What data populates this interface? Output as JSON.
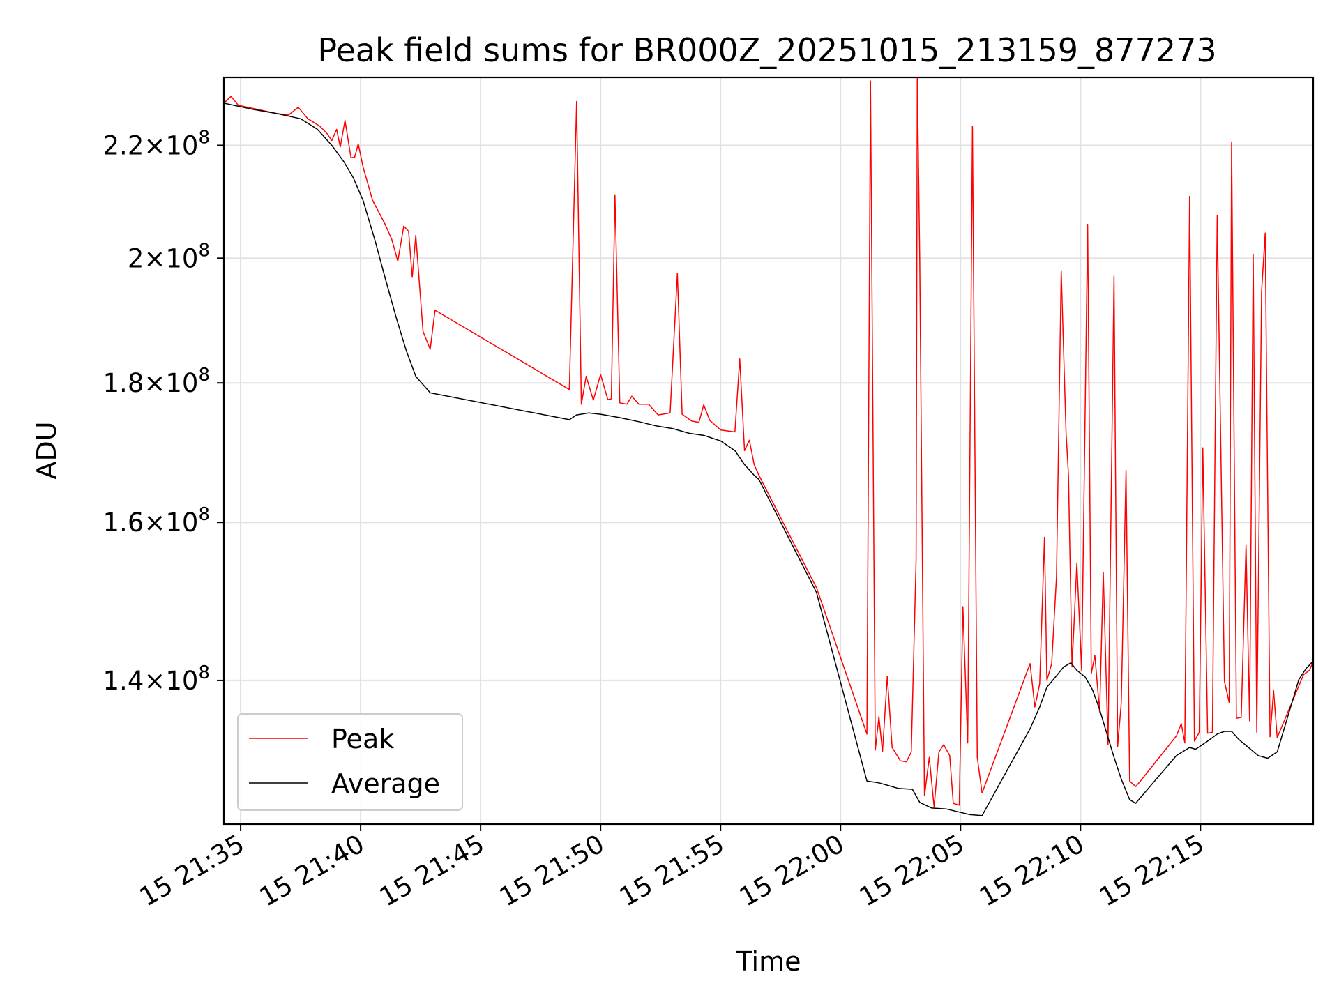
{
  "chart_data": {
    "type": "line",
    "title": "Peak field sums for BR000Z_20251015_213159_877273",
    "xlabel": "Time",
    "ylabel": "ADU",
    "yscale": "log",
    "x_unit": "minutes since 15 21:30",
    "xlim": [
      4.3,
      49.7
    ],
    "ylim": [
      124000000,
      233000000
    ],
    "grid": true,
    "legend_position": "lower-left",
    "x_ticks": [
      {
        "value": 5,
        "label": "15 21:35"
      },
      {
        "value": 10,
        "label": "15 21:40"
      },
      {
        "value": 15,
        "label": "15 21:45"
      },
      {
        "value": 20,
        "label": "15 21:50"
      },
      {
        "value": 25,
        "label": "15 21:55"
      },
      {
        "value": 30,
        "label": "15 22:00"
      },
      {
        "value": 35,
        "label": "15 22:05"
      },
      {
        "value": 40,
        "label": "15 22:10"
      },
      {
        "value": 45,
        "label": "15 22:15"
      }
    ],
    "y_ticks": [
      {
        "value": 140000000,
        "mantissa": "1.4",
        "exp": "8"
      },
      {
        "value": 160000000,
        "mantissa": "1.6",
        "exp": "8"
      },
      {
        "value": 180000000,
        "mantissa": "1.8",
        "exp": "8"
      },
      {
        "value": 200000000,
        "mantissa": "2",
        "exp": "8"
      },
      {
        "value": 220000000,
        "mantissa": "2.2",
        "exp": "8"
      }
    ],
    "series": [
      {
        "name": "Peak",
        "color": "#ff0000",
        "points": [
          [
            4.3,
            228000000
          ],
          [
            4.6,
            229300000
          ],
          [
            4.9,
            227600000
          ],
          [
            5.5,
            227000000
          ],
          [
            6.5,
            226000000
          ],
          [
            7.0,
            225700000
          ],
          [
            7.4,
            227200000
          ],
          [
            7.8,
            225000000
          ],
          [
            8.3,
            223600000
          ],
          [
            8.6,
            222200000
          ],
          [
            8.8,
            220900000
          ],
          [
            9.0,
            223000000
          ],
          [
            9.15,
            219700000
          ],
          [
            9.35,
            224700000
          ],
          [
            9.6,
            217700000
          ],
          [
            9.75,
            217800000
          ],
          [
            9.9,
            220300000
          ],
          [
            10.1,
            216000000
          ],
          [
            10.5,
            210000000
          ],
          [
            11.0,
            206000000
          ],
          [
            11.3,
            203200000
          ],
          [
            11.55,
            199500000
          ],
          [
            11.8,
            205500000
          ],
          [
            12.0,
            204600000
          ],
          [
            12.15,
            196800000
          ],
          [
            12.3,
            203900000
          ],
          [
            12.6,
            188000000
          ],
          [
            12.9,
            185200000
          ],
          [
            13.1,
            191400000
          ],
          [
            18.7,
            179000000
          ],
          [
            19.0,
            228300000
          ],
          [
            19.2,
            176800000
          ],
          [
            19.4,
            181000000
          ],
          [
            19.7,
            177400000
          ],
          [
            20.0,
            181300000
          ],
          [
            20.3,
            177500000
          ],
          [
            20.45,
            177600000
          ],
          [
            20.6,
            211000000
          ],
          [
            20.8,
            177000000
          ],
          [
            21.1,
            176800000
          ],
          [
            21.3,
            178000000
          ],
          [
            21.6,
            176800000
          ],
          [
            22.0,
            176800000
          ],
          [
            22.4,
            175200000
          ],
          [
            22.9,
            175500000
          ],
          [
            23.2,
            197500000
          ],
          [
            23.4,
            175300000
          ],
          [
            23.8,
            174300000
          ],
          [
            24.1,
            174100000
          ],
          [
            24.3,
            176700000
          ],
          [
            24.55,
            174400000
          ],
          [
            25.0,
            173000000
          ],
          [
            25.6,
            172700000
          ],
          [
            25.8,
            183700000
          ],
          [
            26.0,
            170000000
          ],
          [
            26.2,
            171500000
          ],
          [
            26.4,
            168000000
          ],
          [
            26.6,
            166500000
          ],
          [
            29.0,
            151400000
          ],
          [
            31.1,
            133800000
          ],
          [
            31.25,
            232300000
          ],
          [
            31.45,
            132000000
          ],
          [
            31.6,
            135800000
          ],
          [
            31.75,
            131800000
          ],
          [
            31.95,
            140500000
          ],
          [
            32.15,
            132300000
          ],
          [
            32.5,
            130800000
          ],
          [
            32.75,
            130700000
          ],
          [
            32.95,
            131800000
          ],
          [
            33.15,
            155000000
          ],
          [
            33.2,
            233000000
          ],
          [
            33.3,
            200000000
          ],
          [
            33.5,
            127000000
          ],
          [
            33.7,
            131200000
          ],
          [
            33.9,
            125800000
          ],
          [
            34.1,
            131800000
          ],
          [
            34.3,
            132600000
          ],
          [
            34.55,
            131400000
          ],
          [
            34.7,
            126200000
          ],
          [
            34.95,
            126000000
          ],
          [
            35.1,
            149000000
          ],
          [
            35.3,
            132800000
          ],
          [
            35.5,
            223600000
          ],
          [
            35.7,
            131200000
          ],
          [
            35.9,
            127300000
          ],
          [
            37.9,
            142000000
          ],
          [
            38.1,
            136900000
          ],
          [
            38.3,
            139600000
          ],
          [
            38.5,
            158000000
          ],
          [
            38.6,
            140000000
          ],
          [
            38.8,
            142000000
          ],
          [
            39.0,
            152800000
          ],
          [
            39.2,
            197900000
          ],
          [
            39.4,
            172600000
          ],
          [
            39.5,
            166500000
          ],
          [
            39.65,
            141600000
          ],
          [
            39.85,
            154600000
          ],
          [
            40.05,
            141200000
          ],
          [
            40.3,
            205800000
          ],
          [
            40.45,
            140800000
          ],
          [
            40.6,
            143000000
          ],
          [
            40.8,
            136300000
          ],
          [
            40.95,
            153400000
          ],
          [
            41.15,
            132600000
          ],
          [
            41.4,
            197000000
          ],
          [
            41.55,
            132400000
          ],
          [
            41.7,
            137400000
          ],
          [
            41.9,
            167200000
          ],
          [
            42.05,
            128600000
          ],
          [
            42.3,
            128000000
          ],
          [
            42.5,
            128600000
          ],
          [
            44.0,
            133600000
          ],
          [
            44.2,
            135000000
          ],
          [
            44.35,
            132800000
          ],
          [
            44.55,
            210700000
          ],
          [
            44.75,
            133000000
          ],
          [
            44.95,
            134000000
          ],
          [
            45.1,
            170400000
          ],
          [
            45.3,
            133900000
          ],
          [
            45.5,
            134000000
          ],
          [
            45.7,
            207400000
          ],
          [
            46.0,
            139900000
          ],
          [
            46.2,
            137400000
          ],
          [
            46.3,
            220600000
          ],
          [
            46.5,
            135600000
          ],
          [
            46.7,
            135700000
          ],
          [
            46.9,
            157000000
          ],
          [
            47.05,
            135300000
          ],
          [
            47.2,
            200600000
          ],
          [
            47.35,
            134000000
          ],
          [
            47.55,
            194500000
          ],
          [
            47.7,
            204300000
          ],
          [
            47.9,
            133500000
          ],
          [
            48.05,
            138800000
          ],
          [
            48.2,
            133400000
          ],
          [
            49.3,
            140700000
          ],
          [
            49.55,
            141200000
          ],
          [
            49.7,
            142300000
          ]
        ]
      },
      {
        "name": "Average",
        "color": "#000000",
        "points": [
          [
            4.3,
            228000000
          ],
          [
            5.5,
            226800000
          ],
          [
            6.5,
            226000000
          ],
          [
            7.5,
            225000000
          ],
          [
            8.2,
            223000000
          ],
          [
            8.8,
            220000000
          ],
          [
            9.3,
            217000000
          ],
          [
            9.7,
            214000000
          ],
          [
            10.1,
            210000000
          ],
          [
            10.6,
            203000000
          ],
          [
            11.0,
            197000000
          ],
          [
            11.5,
            190000000
          ],
          [
            11.9,
            185000000
          ],
          [
            12.3,
            181000000
          ],
          [
            12.9,
            178500000
          ],
          [
            18.7,
            174500000
          ],
          [
            19.0,
            175200000
          ],
          [
            19.5,
            175500000
          ],
          [
            20.0,
            175300000
          ],
          [
            20.8,
            174800000
          ],
          [
            21.6,
            174200000
          ],
          [
            22.3,
            173600000
          ],
          [
            23.0,
            173200000
          ],
          [
            23.7,
            172500000
          ],
          [
            24.3,
            172200000
          ],
          [
            25.0,
            171400000
          ],
          [
            25.6,
            170000000
          ],
          [
            26.0,
            168000000
          ],
          [
            26.4,
            166500000
          ],
          [
            26.6,
            165900000
          ],
          [
            29.0,
            150800000
          ],
          [
            31.1,
            128600000
          ],
          [
            31.6,
            128400000
          ],
          [
            32.4,
            127800000
          ],
          [
            33.0,
            127700000
          ],
          [
            33.3,
            126300000
          ],
          [
            33.8,
            125700000
          ],
          [
            34.4,
            125600000
          ],
          [
            34.9,
            125300000
          ],
          [
            35.4,
            125000000
          ],
          [
            35.9,
            124900000
          ],
          [
            37.9,
            134400000
          ],
          [
            38.3,
            136900000
          ],
          [
            38.6,
            139200000
          ],
          [
            38.9,
            140200000
          ],
          [
            39.3,
            141600000
          ],
          [
            39.6,
            142100000
          ],
          [
            39.85,
            141200000
          ],
          [
            40.2,
            140400000
          ],
          [
            40.5,
            138900000
          ],
          [
            40.8,
            136600000
          ],
          [
            41.05,
            134300000
          ],
          [
            41.4,
            131200000
          ],
          [
            41.7,
            128800000
          ],
          [
            42.05,
            126600000
          ],
          [
            42.3,
            126200000
          ],
          [
            44.0,
            131400000
          ],
          [
            44.55,
            132300000
          ],
          [
            44.8,
            132100000
          ],
          [
            45.3,
            133000000
          ],
          [
            45.7,
            133800000
          ],
          [
            46.0,
            134100000
          ],
          [
            46.3,
            134100000
          ],
          [
            46.6,
            133200000
          ],
          [
            47.0,
            132300000
          ],
          [
            47.4,
            131400000
          ],
          [
            47.8,
            131100000
          ],
          [
            48.2,
            131800000
          ],
          [
            49.1,
            140100000
          ],
          [
            49.4,
            141400000
          ],
          [
            49.7,
            142300000
          ]
        ]
      }
    ]
  }
}
